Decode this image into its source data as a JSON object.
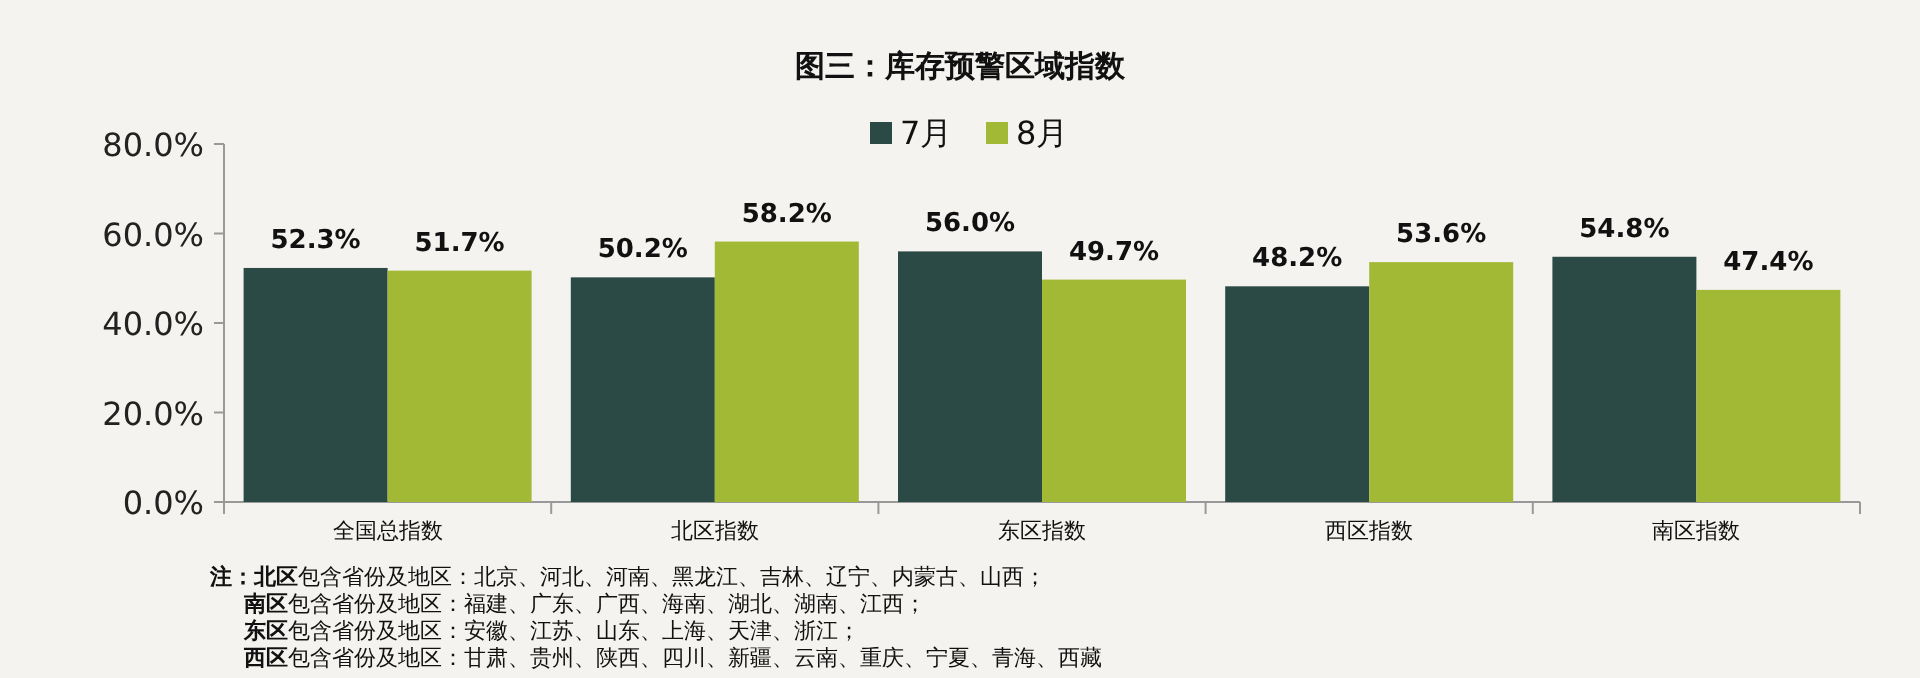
{
  "chart_data": {
    "type": "bar",
    "title": "图三：库存预警区域指数",
    "categories": [
      "全国总指数",
      "北区指数",
      "东区指数",
      "西区指数",
      "南区指数"
    ],
    "series": [
      {
        "name": "7月",
        "color": "#2b4a46",
        "values": [
          52.3,
          50.2,
          56.0,
          48.2,
          54.8
        ],
        "value_labels": [
          "52.3%",
          "50.2%",
          "56.0%",
          "48.2%",
          "54.8%"
        ]
      },
      {
        "name": "8月",
        "color": "#a2b935",
        "values": [
          51.7,
          58.2,
          49.7,
          53.6,
          47.4
        ],
        "value_labels": [
          "51.7%",
          "58.2%",
          "49.7%",
          "53.6%",
          "47.4%"
        ]
      }
    ],
    "ylim": [
      0,
      80
    ],
    "yticks": [
      {
        "value": 0,
        "label": "0.0%"
      },
      {
        "value": 20,
        "label": "20.0%"
      },
      {
        "value": 40,
        "label": "40.0%"
      },
      {
        "value": 60,
        "label": "60.0%"
      },
      {
        "value": 80,
        "label": "80.0%"
      }
    ],
    "legend": "top",
    "annotations": [
      "**注：北区**包含省份及地区：北京、河北、河南、黑龙江、吉林、辽宁、内蒙古、山西；",
      "**南区**包含省份及地区：福建、广东、广西、海南、湖北、湖南、江西；",
      "**东区**包含省份及地区：安徽、江苏、山东、上海、天津、浙江；",
      "**西区**包含省份及地区：甘肃、贵州、陕西、四川、新疆、云南、重庆、宁夏、青海、西藏"
    ]
  }
}
